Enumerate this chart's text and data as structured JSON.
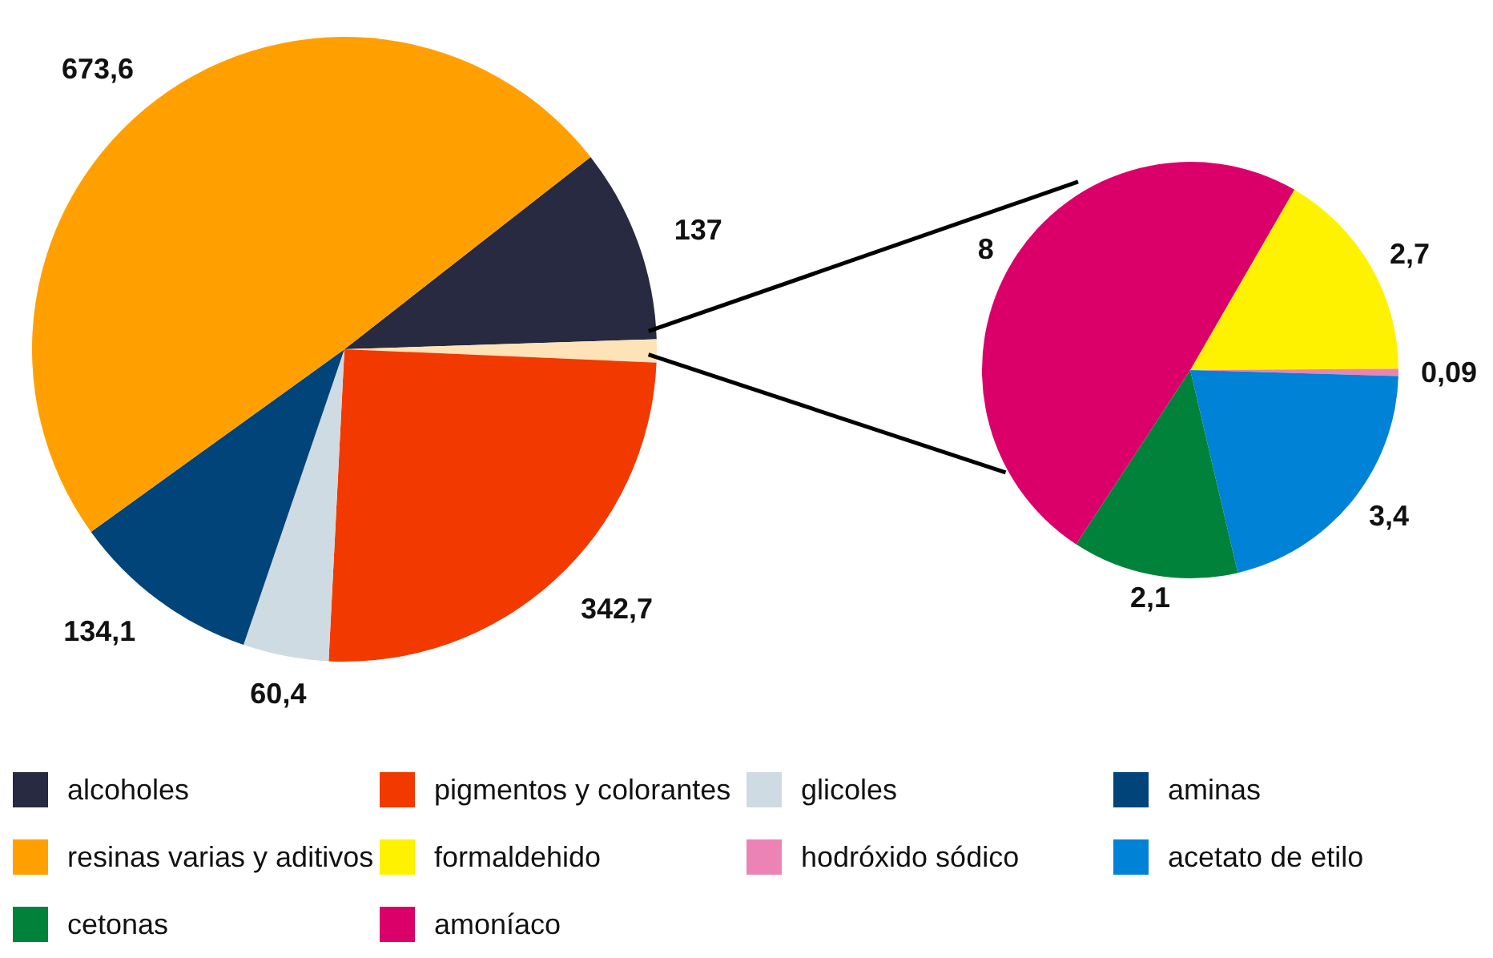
{
  "chart_data": [
    {
      "type": "pie",
      "categories": [
        "alcoholes",
        null,
        "pigmentos y colorantes",
        "glicoles",
        "aminas",
        "resinas varias y aditivos"
      ],
      "values": [
        137,
        16.29,
        342.7,
        60.4,
        134.1,
        673.6
      ],
      "colors": [
        "#272a40",
        "#ffe3b8",
        "#f23a00",
        "#cfdbe3",
        "#00447a",
        "#ffa000"
      ],
      "value_labels": [
        "137",
        null,
        "342,7",
        "60,4",
        "134,1",
        "673,6"
      ],
      "legend": "bottom"
    },
    {
      "type": "pie",
      "categories": [
        "formaldehido",
        "hodróxido sódico",
        "acetato de etilo",
        "cetonas",
        "amoníaco"
      ],
      "values": [
        2.7,
        0.09,
        3.4,
        2.1,
        8
      ],
      "colors": [
        "#fff200",
        "#eb84b4",
        "#0082d6",
        "#00823a",
        "#db0069"
      ],
      "value_labels": [
        "2,7",
        "0,09",
        "3,4",
        "2,1",
        "8"
      ],
      "legend": "bottom"
    }
  ]
}
